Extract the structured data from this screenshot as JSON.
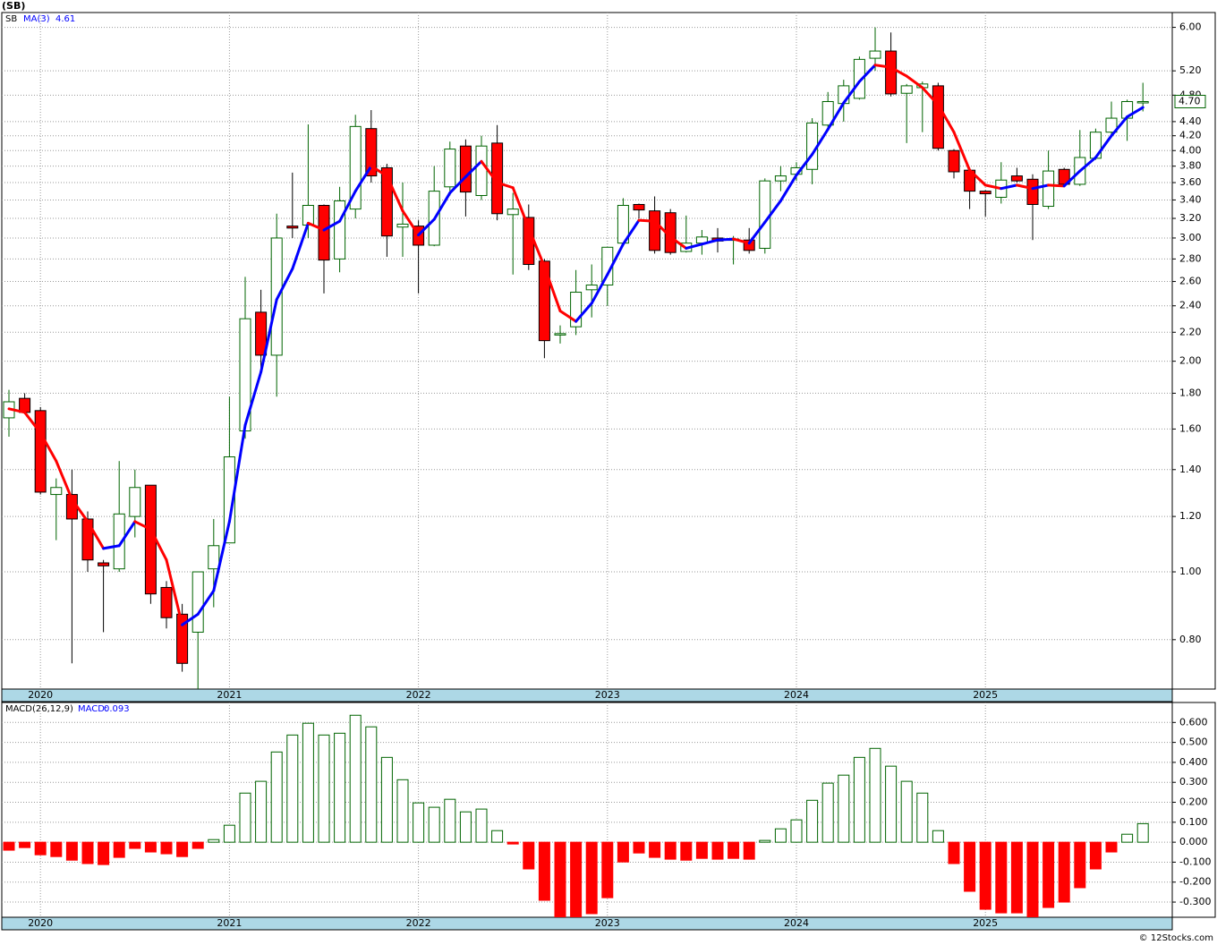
{
  "chart_data": [
    {
      "type": "candlestick",
      "title": "(SB)",
      "symbol": "SB",
      "categories": [
        null,
        null,
        "2020",
        null,
        null,
        null,
        null,
        null,
        null,
        null,
        null,
        null,
        null,
        null,
        "2021",
        null,
        null,
        null,
        null,
        null,
        null,
        null,
        null,
        null,
        null,
        null,
        "2022",
        null,
        null,
        null,
        null,
        null,
        null,
        null,
        null,
        null,
        null,
        null,
        "2023",
        null,
        null,
        null,
        null,
        null,
        null,
        null,
        null,
        null,
        null,
        null,
        "2024",
        null,
        null,
        null,
        null,
        null,
        null,
        null,
        null,
        null,
        null,
        null,
        "2025",
        null,
        null,
        null,
        null,
        null,
        null,
        null,
        null,
        null,
        null
      ],
      "open": [
        1.66,
        1.77,
        1.7,
        1.29,
        1.29,
        1.19,
        1.03,
        1.01,
        1.2,
        1.33,
        0.95,
        0.87,
        0.82,
        1.01,
        1.1,
        1.59,
        2.35,
        2.04,
        3.12,
        3.13,
        3.34,
        2.8,
        3.3,
        4.3,
        3.78,
        3.11,
        3.12,
        2.93,
        3.55,
        4.06,
        3.45,
        4.1,
        3.24,
        3.21,
        2.78,
        2.18,
        2.24,
        2.53,
        2.57,
        2.95,
        3.35,
        3.28,
        3.26,
        2.87,
        2.95,
        3.0,
        2.98,
        2.98,
        2.9,
        3.62,
        3.7,
        3.76,
        4.35,
        4.67,
        4.75,
        5.42,
        5.55,
        4.83,
        4.92,
        4.95,
        4.0,
        3.75,
        3.5,
        3.43,
        3.68,
        3.64,
        3.33,
        3.76,
        3.58,
        3.9,
        4.25,
        4.45,
        4.68
      ],
      "high": [
        1.82,
        1.8,
        1.72,
        1.36,
        1.4,
        1.22,
        1.04,
        1.44,
        1.4,
        1.33,
        0.97,
        0.9,
        1.0,
        1.19,
        1.78,
        2.64,
        2.53,
        3.25,
        3.72,
        4.36,
        3.35,
        3.55,
        4.5,
        4.57,
        3.83,
        3.6,
        3.18,
        3.8,
        4.12,
        4.15,
        4.2,
        4.35,
        3.48,
        3.35,
        2.8,
        2.25,
        2.7,
        2.75,
        2.91,
        3.42,
        3.36,
        3.44,
        3.3,
        3.23,
        3.08,
        3.1,
        3.02,
        3.1,
        3.65,
        3.8,
        3.85,
        4.45,
        4.85,
        5.05,
        5.45,
        6.0,
        5.9,
        4.98,
        5.02,
        5.0,
        4.02,
        3.78,
        3.51,
        3.85,
        3.78,
        3.7,
        4.0,
        3.78,
        4.28,
        4.3,
        4.7,
        4.73,
        5.0
      ],
      "low": [
        1.56,
        1.68,
        1.29,
        1.11,
        0.74,
        1.0,
        0.82,
        1.0,
        1.12,
        0.9,
        0.83,
        0.72,
        0.68,
        0.89,
        1.1,
        1.55,
        1.95,
        1.78,
        3.0,
        3.0,
        2.5,
        2.68,
        3.2,
        3.6,
        2.82,
        2.82,
        2.5,
        2.92,
        3.45,
        3.22,
        3.4,
        3.18,
        2.66,
        2.7,
        2.02,
        2.12,
        2.18,
        2.31,
        2.4,
        2.92,
        3.2,
        2.85,
        2.84,
        2.86,
        2.84,
        2.86,
        2.75,
        2.85,
        2.85,
        3.5,
        3.62,
        3.58,
        4.3,
        4.4,
        4.73,
        5.2,
        4.78,
        4.1,
        4.25,
        4.0,
        3.65,
        3.3,
        3.22,
        3.36,
        3.6,
        2.98,
        3.3,
        3.55,
        3.56,
        3.88,
        4.2,
        4.13,
        4.55
      ],
      "close": [
        1.75,
        1.69,
        1.3,
        1.32,
        1.19,
        1.04,
        1.02,
        1.21,
        1.32,
        0.93,
        0.86,
        0.74,
        1.0,
        1.09,
        1.46,
        2.3,
        2.04,
        3.0,
        3.1,
        3.34,
        2.79,
        3.39,
        4.33,
        3.68,
        3.02,
        3.14,
        2.93,
        3.5,
        4.02,
        3.49,
        4.06,
        3.25,
        3.3,
        2.75,
        2.14,
        2.19,
        2.51,
        2.57,
        2.91,
        3.34,
        3.29,
        2.88,
        2.86,
        2.95,
        3.01,
        2.97,
        2.99,
        2.88,
        3.62,
        3.68,
        3.78,
        4.38,
        4.7,
        4.95,
        5.4,
        5.55,
        4.82,
        4.95,
        4.98,
        4.03,
        3.73,
        3.5,
        3.47,
        3.63,
        3.62,
        3.35,
        3.74,
        3.58,
        3.91,
        4.25,
        4.45,
        4.7,
        4.7
      ],
      "up_color": "#006400",
      "down_color": "#ff0000",
      "series": [
        {
          "name": "MA(3)",
          "color": "#0000ff",
          "falling_color": "#ff0000",
          "values": [
            1.71,
            1.69,
            1.58,
            1.44,
            1.27,
            1.18,
            1.08,
            1.09,
            1.18,
            1.15,
            1.04,
            0.84,
            0.87,
            0.94,
            1.18,
            1.62,
            1.93,
            2.45,
            2.71,
            3.15,
            3.08,
            3.17,
            3.5,
            3.8,
            3.68,
            3.28,
            3.03,
            3.19,
            3.48,
            3.67,
            3.86,
            3.6,
            3.54,
            3.1,
            2.73,
            2.36,
            2.28,
            2.42,
            2.66,
            2.94,
            3.18,
            3.17,
            3.01,
            2.9,
            2.94,
            2.98,
            2.99,
            2.95,
            3.16,
            3.39,
            3.69,
            3.95,
            4.29,
            4.68,
            5.02,
            5.3,
            5.26,
            5.11,
            4.92,
            4.65,
            4.25,
            3.75,
            3.57,
            3.53,
            3.57,
            3.53,
            3.57,
            3.56,
            3.74,
            3.91,
            4.2,
            4.47,
            4.61
          ]
        }
      ],
      "last_price": {
        "value": 4.7,
        "label": "4.70"
      },
      "log_scale": true,
      "grid": true,
      "ylim": [
        0.68,
        6.3
      ],
      "yticks": [
        {
          "value": 0.8,
          "label": "0.80"
        },
        {
          "value": 1,
          "label": "1.00"
        },
        {
          "value": 1.2,
          "label": "1.20"
        },
        {
          "value": 1.4,
          "label": "1.40"
        },
        {
          "value": 1.6,
          "label": "1.60"
        },
        {
          "value": 1.8,
          "label": "1.80"
        },
        {
          "value": 2,
          "label": "2.00"
        },
        {
          "value": 2.2,
          "label": "2.20"
        },
        {
          "value": 2.4,
          "label": "2.40"
        },
        {
          "value": 2.6,
          "label": "2.60"
        },
        {
          "value": 2.8,
          "label": "2.80"
        },
        {
          "value": 3,
          "label": "3.00"
        },
        {
          "value": 3.2,
          "label": "3.20"
        },
        {
          "value": 3.4,
          "label": "3.40"
        },
        {
          "value": 3.6,
          "label": "3.60"
        },
        {
          "value": 3.8,
          "label": "3.80"
        },
        {
          "value": 4,
          "label": "4.00"
        },
        {
          "value": 4.2,
          "label": "4.20"
        },
        {
          "value": 4.4,
          "label": "4.40"
        },
        {
          "value": 4.8,
          "label": "4.80"
        },
        {
          "value": 5.2,
          "label": "5.20"
        },
        {
          "value": 6,
          "label": "6.00"
        }
      ]
    },
    {
      "type": "bar",
      "title": "MACD(26,12,9)",
      "value_prefix": "MACD:",
      "categories": [
        null,
        null,
        "2020",
        null,
        null,
        null,
        null,
        null,
        null,
        null,
        null,
        null,
        null,
        null,
        "2021",
        null,
        null,
        null,
        null,
        null,
        null,
        null,
        null,
        null,
        null,
        null,
        "2022",
        null,
        null,
        null,
        null,
        null,
        null,
        null,
        null,
        null,
        null,
        null,
        "2023",
        null,
        null,
        null,
        null,
        null,
        null,
        null,
        null,
        null,
        null,
        null,
        "2024",
        null,
        null,
        null,
        null,
        null,
        null,
        null,
        null,
        null,
        null,
        null,
        "2025",
        null,
        null,
        null,
        null,
        null,
        null,
        null,
        null,
        null,
        null
      ],
      "values": [
        -0.04,
        -0.027,
        -0.063,
        -0.072,
        -0.09,
        -0.107,
        -0.112,
        -0.076,
        -0.031,
        -0.049,
        -0.058,
        -0.072,
        -0.031,
        0.013,
        0.085,
        0.246,
        0.305,
        0.452,
        0.537,
        0.596,
        0.537,
        0.546,
        0.636,
        0.578,
        0.425,
        0.313,
        0.197,
        0.175,
        0.215,
        0.152,
        0.166,
        0.058,
        -0.009,
        -0.134,
        -0.291,
        -0.4,
        -0.39,
        -0.358,
        -0.278,
        -0.099,
        -0.054,
        -0.076,
        -0.085,
        -0.09,
        -0.081,
        -0.085,
        -0.081,
        -0.085,
        0.009,
        0.067,
        0.112,
        0.21,
        0.296,
        0.336,
        0.425,
        0.47,
        0.381,
        0.305,
        0.246,
        0.058,
        -0.107,
        -0.246,
        -0.336,
        -0.354,
        -0.354,
        -0.4,
        -0.327,
        -0.3,
        -0.228,
        -0.134,
        -0.049,
        0.04,
        0.093
      ],
      "positive_color": "#006400",
      "negative_color": "#ff0000",
      "label_color": "#0000ff",
      "grid": true,
      "ylim": [
        -0.376,
        0.7
      ],
      "yticks": [
        {
          "value": -0.3,
          "label": "-0.300"
        },
        {
          "value": -0.2,
          "label": "-0.200"
        },
        {
          "value": -0.1,
          "label": "-0.100"
        },
        {
          "value": 0,
          "label": "0.000"
        },
        {
          "value": 0.1,
          "label": "0.100"
        },
        {
          "value": 0.2,
          "label": "0.200"
        },
        {
          "value": 0.3,
          "label": "0.300"
        },
        {
          "value": 0.4,
          "label": "0.400"
        },
        {
          "value": 0.5,
          "label": "0.500"
        },
        {
          "value": 0.6,
          "label": "0.600"
        }
      ]
    }
  ],
  "copyright": "© 12Stocks.com"
}
